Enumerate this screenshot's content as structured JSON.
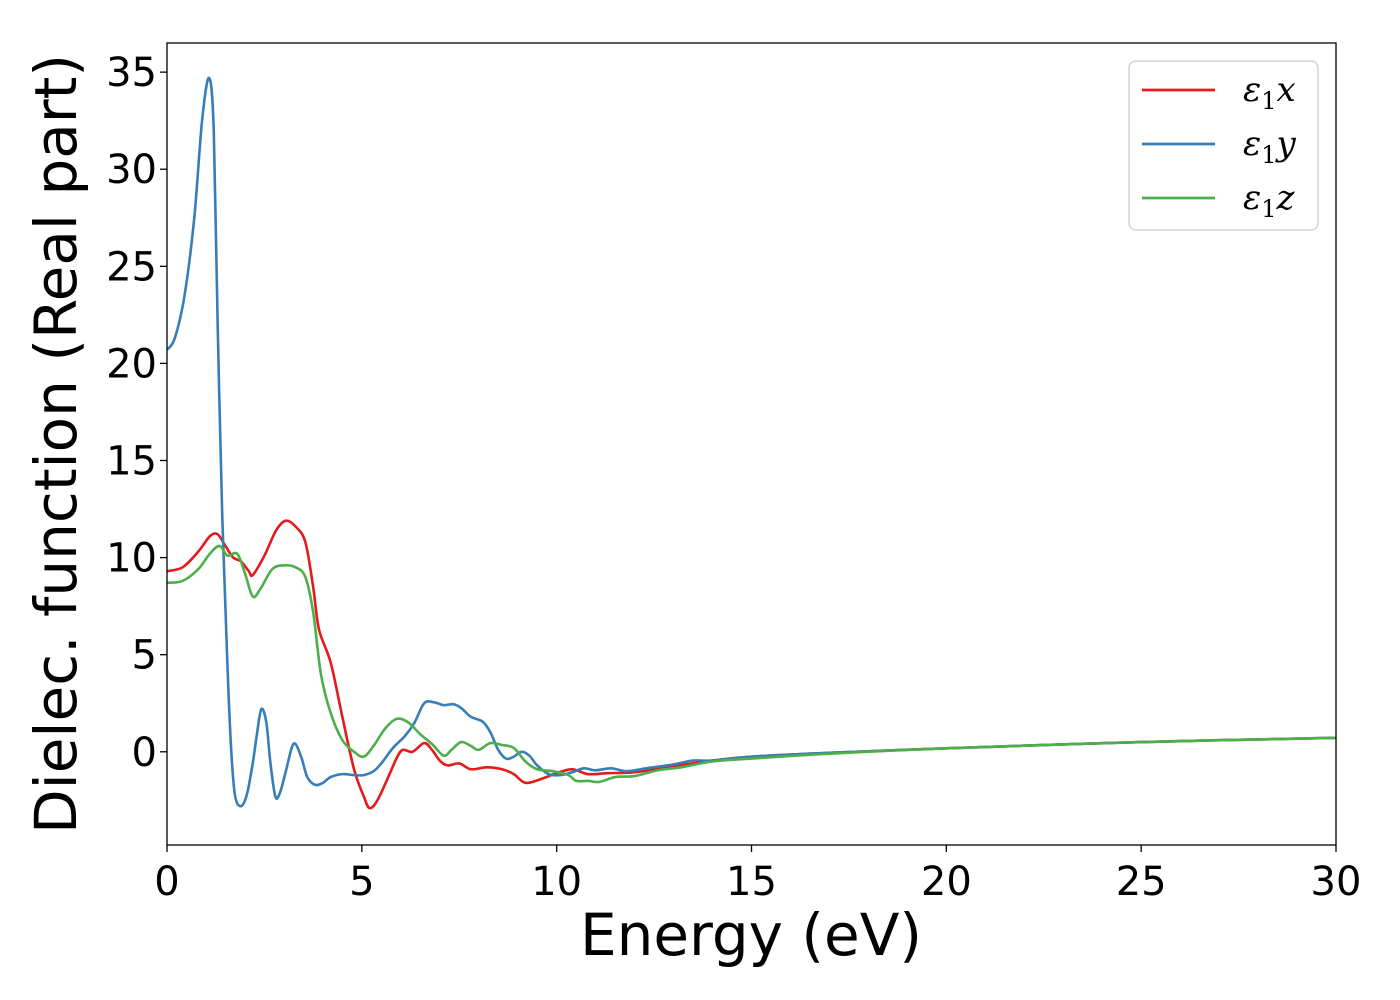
{
  "chart_data": {
    "type": "line",
    "title": "",
    "xlabel": "Energy (eV)",
    "ylabel": "Dielec. function (Real part)",
    "xlim": [
      0,
      30
    ],
    "ylim": [
      -4.8,
      36.5
    ],
    "xticks": [
      0,
      5,
      10,
      15,
      20,
      25,
      30
    ],
    "yticks": [
      0,
      5,
      10,
      15,
      20,
      25,
      30,
      35
    ],
    "grid": false,
    "legend_position": "top-right",
    "series": [
      {
        "name": "ε1x",
        "base": "ε",
        "sub": "1",
        "comp": "x",
        "color": "#e41a1c",
        "points": [
          [
            0,
            9.3
          ],
          [
            0.4,
            9.5
          ],
          [
            0.8,
            10.3
          ],
          [
            1.1,
            11.1
          ],
          [
            1.3,
            11.2
          ],
          [
            1.5,
            10.6
          ],
          [
            1.7,
            10.0
          ],
          [
            1.9,
            9.8
          ],
          [
            2.1,
            9.3
          ],
          [
            2.2,
            9.1
          ],
          [
            2.5,
            10.1
          ],
          [
            2.8,
            11.4
          ],
          [
            3.05,
            11.9
          ],
          [
            3.3,
            11.6
          ],
          [
            3.55,
            10.8
          ],
          [
            3.75,
            8.5
          ],
          [
            3.9,
            6.3
          ],
          [
            4.2,
            4.6
          ],
          [
            4.5,
            1.8
          ],
          [
            4.8,
            -0.9
          ],
          [
            5.05,
            -2.3
          ],
          [
            5.2,
            -2.9
          ],
          [
            5.4,
            -2.5
          ],
          [
            5.7,
            -1.2
          ],
          [
            5.9,
            -0.3
          ],
          [
            6.05,
            0.1
          ],
          [
            6.3,
            0.0
          ],
          [
            6.6,
            0.45
          ],
          [
            6.8,
            0.1
          ],
          [
            7.0,
            -0.45
          ],
          [
            7.2,
            -0.7
          ],
          [
            7.5,
            -0.6
          ],
          [
            7.8,
            -0.9
          ],
          [
            8.2,
            -0.8
          ],
          [
            8.6,
            -0.9
          ],
          [
            8.9,
            -1.15
          ],
          [
            9.2,
            -1.6
          ],
          [
            9.6,
            -1.4
          ],
          [
            10.0,
            -1.1
          ],
          [
            10.4,
            -0.9
          ],
          [
            10.8,
            -1.15
          ],
          [
            11.3,
            -1.1
          ],
          [
            12.0,
            -1.05
          ],
          [
            13.0,
            -0.75
          ],
          [
            14.0,
            -0.45
          ],
          [
            15.0,
            -0.25
          ],
          [
            17.0,
            -0.05
          ],
          [
            20.0,
            0.18
          ],
          [
            25.0,
            0.5
          ],
          [
            30.0,
            0.72
          ]
        ]
      },
      {
        "name": "ε1y",
        "base": "ε",
        "sub": "1",
        "comp": "y",
        "color": "#377eb8",
        "points": [
          [
            0,
            20.7
          ],
          [
            0.2,
            21.3
          ],
          [
            0.45,
            23.5
          ],
          [
            0.7,
            27.5
          ],
          [
            0.9,
            32.5
          ],
          [
            1.08,
            34.7
          ],
          [
            1.2,
            32.0
          ],
          [
            1.3,
            22.0
          ],
          [
            1.42,
            12.0
          ],
          [
            1.55,
            4.5
          ],
          [
            1.65,
            0.0
          ],
          [
            1.75,
            -2.3
          ],
          [
            1.9,
            -2.8
          ],
          [
            2.05,
            -2.2
          ],
          [
            2.2,
            -0.6
          ],
          [
            2.3,
            0.8
          ],
          [
            2.42,
            2.2
          ],
          [
            2.55,
            1.5
          ],
          [
            2.65,
            -0.5
          ],
          [
            2.78,
            -2.3
          ],
          [
            2.9,
            -2.1
          ],
          [
            3.05,
            -1.0
          ],
          [
            3.2,
            0.2
          ],
          [
            3.3,
            0.4
          ],
          [
            3.45,
            -0.3
          ],
          [
            3.6,
            -1.3
          ],
          [
            3.8,
            -1.7
          ],
          [
            4.0,
            -1.6
          ],
          [
            4.2,
            -1.3
          ],
          [
            4.5,
            -1.15
          ],
          [
            4.8,
            -1.2
          ],
          [
            5.05,
            -1.2
          ],
          [
            5.3,
            -1.0
          ],
          [
            5.5,
            -0.6
          ],
          [
            5.8,
            0.2
          ],
          [
            6.1,
            0.8
          ],
          [
            6.35,
            1.5
          ],
          [
            6.6,
            2.5
          ],
          [
            6.85,
            2.55
          ],
          [
            7.1,
            2.4
          ],
          [
            7.35,
            2.45
          ],
          [
            7.55,
            2.25
          ],
          [
            7.8,
            1.8
          ],
          [
            8.1,
            1.55
          ],
          [
            8.3,
            1.0
          ],
          [
            8.5,
            0.1
          ],
          [
            8.7,
            -0.35
          ],
          [
            8.9,
            -0.25
          ],
          [
            9.1,
            0.0
          ],
          [
            9.3,
            -0.2
          ],
          [
            9.5,
            -0.7
          ],
          [
            9.8,
            -1.15
          ],
          [
            10.1,
            -1.2
          ],
          [
            10.4,
            -1.05
          ],
          [
            10.7,
            -0.85
          ],
          [
            11.0,
            -0.95
          ],
          [
            11.4,
            -0.85
          ],
          [
            11.8,
            -1.0
          ],
          [
            12.3,
            -0.85
          ],
          [
            13.0,
            -0.65
          ],
          [
            13.5,
            -0.45
          ],
          [
            14.0,
            -0.45
          ],
          [
            15.0,
            -0.25
          ],
          [
            17.0,
            -0.05
          ],
          [
            20.0,
            0.18
          ],
          [
            25.0,
            0.5
          ],
          [
            30.0,
            0.72
          ]
        ]
      },
      {
        "name": "ε1z",
        "base": "ε",
        "sub": "1",
        "comp": "z",
        "color": "#4daf4a",
        "points": [
          [
            0,
            8.7
          ],
          [
            0.4,
            8.8
          ],
          [
            0.8,
            9.4
          ],
          [
            1.1,
            10.2
          ],
          [
            1.35,
            10.6
          ],
          [
            1.55,
            10.1
          ],
          [
            1.8,
            10.2
          ],
          [
            2.0,
            9.2
          ],
          [
            2.2,
            8.0
          ],
          [
            2.4,
            8.4
          ],
          [
            2.7,
            9.4
          ],
          [
            3.0,
            9.6
          ],
          [
            3.3,
            9.5
          ],
          [
            3.55,
            9.0
          ],
          [
            3.75,
            7.2
          ],
          [
            3.95,
            4.0
          ],
          [
            4.2,
            2.0
          ],
          [
            4.5,
            0.6
          ],
          [
            4.8,
            0.0
          ],
          [
            5.05,
            -0.25
          ],
          [
            5.3,
            0.3
          ],
          [
            5.6,
            1.2
          ],
          [
            5.9,
            1.7
          ],
          [
            6.2,
            1.5
          ],
          [
            6.5,
            0.9
          ],
          [
            6.8,
            0.4
          ],
          [
            7.1,
            -0.2
          ],
          [
            7.3,
            0.1
          ],
          [
            7.55,
            0.5
          ],
          [
            7.8,
            0.3
          ],
          [
            8.0,
            0.1
          ],
          [
            8.3,
            0.45
          ],
          [
            8.6,
            0.35
          ],
          [
            8.9,
            0.2
          ],
          [
            9.2,
            -0.5
          ],
          [
            9.5,
            -0.9
          ],
          [
            9.9,
            -1.0
          ],
          [
            10.3,
            -1.2
          ],
          [
            10.5,
            -1.5
          ],
          [
            10.8,
            -1.5
          ],
          [
            11.1,
            -1.55
          ],
          [
            11.5,
            -1.3
          ],
          [
            12.0,
            -1.25
          ],
          [
            12.6,
            -0.95
          ],
          [
            13.2,
            -0.8
          ],
          [
            14.0,
            -0.5
          ],
          [
            15.0,
            -0.35
          ],
          [
            17.0,
            -0.1
          ],
          [
            20.0,
            0.18
          ],
          [
            25.0,
            0.5
          ],
          [
            30.0,
            0.72
          ]
        ]
      }
    ]
  }
}
